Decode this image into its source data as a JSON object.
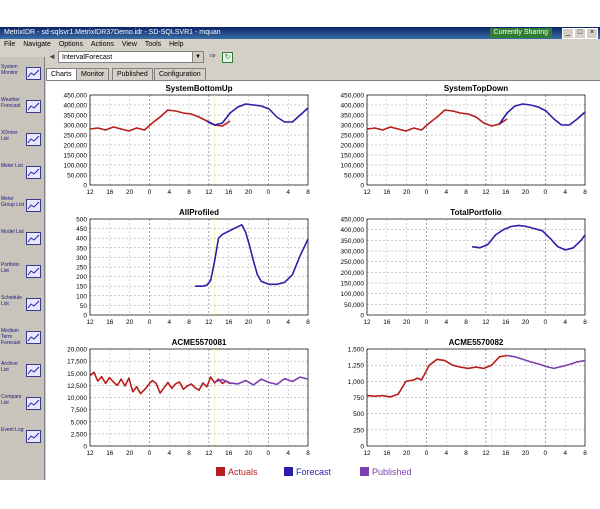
{
  "window": {
    "title": "MetrixIDR - sd-sqlsvr1.MetrixIDR37Demo.idr - SD-SQLSVR1 - mquan",
    "sharing_badge": "Currently Sharing",
    "min_glyph": "_",
    "max_glyph": "□",
    "close_glyph": "×"
  },
  "menu": [
    "File",
    "Navigate",
    "Options",
    "Actions",
    "View",
    "Tools",
    "Help"
  ],
  "nav": {
    "back_glyph": "◄",
    "forward_glyph": "►",
    "combo_value": "IntervalForecast",
    "combo_arrow": "▼",
    "go_glyph": "⇒",
    "refresh_glyph": "↻"
  },
  "sidebar": [
    {
      "label": "System Monitor",
      "icon": "system-monitor-icon"
    },
    {
      "label": "Weather Forecast",
      "icon": "weather-icon"
    },
    {
      "label": "XDriver List",
      "icon": "chart-icon"
    },
    {
      "label": "Meter List",
      "icon": "meter-icon"
    },
    {
      "label": "Meter Group List",
      "icon": "meter-group-icon"
    },
    {
      "label": "Model List",
      "icon": "model-icon"
    },
    {
      "label": "Portfolio List",
      "icon": "folder-icon"
    },
    {
      "label": "Schedule List",
      "icon": "schedule-icon"
    },
    {
      "label": "Medium Term Forecast",
      "icon": "forecast-icon"
    },
    {
      "label": "Archive List",
      "icon": "archive-icon"
    },
    {
      "label": "Compare List",
      "icon": "compare-icon"
    },
    {
      "label": "Event Log",
      "icon": "info-icon"
    }
  ],
  "tabs": [
    "Charts",
    "Monitor",
    "Published",
    "Configuration"
  ],
  "colors": {
    "actuals": "#b81c1c",
    "forecast": "#2a1fa8",
    "published": "#7b3fb0"
  },
  "legend": [
    {
      "key": "actuals",
      "label": "Actuals"
    },
    {
      "key": "forecast",
      "label": "Forecast"
    },
    {
      "key": "published",
      "label": "Published"
    }
  ],
  "chart_data": [
    {
      "type": "line",
      "title": "SystemBottomUp",
      "xticks": [
        "12",
        "16",
        "20",
        "0",
        "4",
        "8",
        "12",
        "16",
        "20",
        "0",
        "4",
        "8"
      ],
      "ylim": [
        0,
        450000
      ],
      "yticks": [
        "0",
        "50,000",
        "100,000",
        "150,000",
        "200,000",
        "250,000",
        "300,000",
        "350,000",
        "400,000",
        "450,000"
      ],
      "series": [
        {
          "name": "Actuals",
          "key": "actuals",
          "x": [
            0,
            2,
            4,
            6,
            8,
            10,
            12,
            14,
            16,
            18,
            20,
            22,
            24,
            26,
            28,
            30,
            32,
            34,
            36
          ],
          "y": [
            280000,
            285000,
            275000,
            290000,
            280000,
            270000,
            285000,
            275000,
            310000,
            340000,
            375000,
            370000,
            360000,
            355000,
            340000,
            320000,
            300000,
            295000,
            320000
          ]
        },
        {
          "name": "Forecast",
          "key": "forecast",
          "x": [
            30,
            32,
            34,
            36,
            38,
            40,
            42,
            44,
            46,
            48,
            50,
            52,
            54,
            56
          ],
          "y": [
            320000,
            300000,
            310000,
            360000,
            390000,
            405000,
            400000,
            395000,
            380000,
            340000,
            315000,
            315000,
            350000,
            385000
          ]
        }
      ]
    },
    {
      "type": "line",
      "title": "SystemTopDown",
      "xticks": [
        "12",
        "16",
        "20",
        "0",
        "4",
        "8",
        "12",
        "16",
        "20",
        "0",
        "4",
        "8"
      ],
      "ylim": [
        0,
        450000
      ],
      "yticks": [
        "0",
        "50,000",
        "100,000",
        "150,000",
        "200,000",
        "250,000",
        "300,000",
        "350,000",
        "400,000",
        "450,000"
      ],
      "series": [
        {
          "name": "Actuals",
          "key": "actuals",
          "x": [
            0,
            2,
            4,
            6,
            8,
            10,
            12,
            14,
            16,
            18,
            20,
            22,
            24,
            26,
            28,
            30,
            32,
            34,
            36
          ],
          "y": [
            280000,
            285000,
            275000,
            290000,
            280000,
            270000,
            285000,
            275000,
            310000,
            340000,
            375000,
            370000,
            360000,
            355000,
            340000,
            310000,
            295000,
            305000,
            330000
          ]
        },
        {
          "name": "Forecast",
          "key": "forecast",
          "x": [
            34,
            36,
            38,
            40,
            42,
            44,
            46,
            48,
            50,
            52,
            54,
            56
          ],
          "y": [
            305000,
            360000,
            395000,
            405000,
            400000,
            390000,
            370000,
            330000,
            300000,
            300000,
            330000,
            365000
          ]
        }
      ]
    },
    {
      "type": "line",
      "title": "AllProfiled",
      "xticks": [
        "12",
        "16",
        "20",
        "0",
        "4",
        "8",
        "12",
        "16",
        "20",
        "0",
        "4",
        "8"
      ],
      "ylim": [
        0,
        500
      ],
      "yticks": [
        "0",
        "50",
        "100",
        "150",
        "200",
        "250",
        "300",
        "350",
        "400",
        "450",
        "500"
      ],
      "series": [
        {
          "name": "Forecast",
          "key": "forecast",
          "x": [
            27,
            29,
            30,
            31,
            32,
            33,
            34,
            35,
            36,
            38,
            39,
            40,
            41,
            42,
            43,
            44,
            46,
            48,
            50,
            52,
            54,
            56
          ],
          "y": [
            150,
            150,
            155,
            180,
            280,
            400,
            420,
            430,
            440,
            460,
            470,
            430,
            360,
            280,
            210,
            175,
            160,
            160,
            170,
            210,
            310,
            395
          ]
        }
      ]
    },
    {
      "type": "line",
      "title": "TotalPortfolio",
      "xticks": [
        "12",
        "16",
        "20",
        "0",
        "4",
        "8",
        "12",
        "16",
        "20",
        "0",
        "4",
        "8"
      ],
      "ylim": [
        0,
        450000
      ],
      "yticks": [
        "0",
        "50,000",
        "100,000",
        "150,000",
        "200,000",
        "250,000",
        "300,000",
        "350,000",
        "400,000",
        "450,000"
      ],
      "series": [
        {
          "name": "Forecast",
          "key": "forecast",
          "x": [
            27,
            29,
            31,
            33,
            35,
            37,
            39,
            41,
            43,
            45,
            47,
            49,
            51,
            53,
            55,
            56
          ],
          "y": [
            320000,
            315000,
            330000,
            375000,
            400000,
            415000,
            420000,
            415000,
            405000,
            395000,
            360000,
            320000,
            305000,
            315000,
            350000,
            375000
          ]
        }
      ]
    },
    {
      "type": "line",
      "title": "ACME5570081",
      "xticks": [
        "12",
        "16",
        "20",
        "0",
        "4",
        "8",
        "12",
        "16",
        "20",
        "0",
        "4",
        "8"
      ],
      "ylim": [
        0,
        20000
      ],
      "yticks": [
        "0",
        "2,500",
        "5,000",
        "7,500",
        "10,000",
        "12,500",
        "15,000",
        "17,500",
        "20,000"
      ],
      "series": [
        {
          "name": "Actuals",
          "key": "actuals",
          "x": [
            0,
            1,
            2,
            3,
            4,
            5,
            6,
            7,
            8,
            9,
            10,
            11,
            12,
            13,
            14,
            15,
            16,
            17,
            18,
            19,
            20,
            21,
            22,
            23,
            24,
            25,
            26,
            27,
            28,
            29,
            30,
            31,
            32,
            33,
            34,
            35,
            36
          ],
          "y": [
            14500,
            15200,
            13400,
            14300,
            12900,
            14100,
            13200,
            12500,
            13800,
            12400,
            14000,
            11200,
            12200,
            10800,
            11600,
            12600,
            13500,
            12900,
            10900,
            12000,
            13100,
            11900,
            12800,
            13200,
            11700,
            12400,
            12800,
            12000,
            11500,
            13000,
            12200,
            14200,
            13000,
            13800,
            12900,
            13400,
            12800
          ]
        },
        {
          "name": "Published",
          "key": "published",
          "x": [
            32,
            34,
            36,
            38,
            40,
            42,
            44,
            46,
            48,
            50,
            52,
            54,
            56
          ],
          "y": [
            13200,
            13700,
            13000,
            12800,
            13500,
            12600,
            13800,
            13100,
            12700,
            13900,
            13300,
            14200,
            13800
          ]
        }
      ]
    },
    {
      "type": "line",
      "title": "ACME5570082",
      "xticks": [
        "12",
        "16",
        "20",
        "0",
        "4",
        "8",
        "12",
        "16",
        "20",
        "0",
        "4",
        "8"
      ],
      "ylim": [
        0,
        1500
      ],
      "yticks": [
        "0",
        "250",
        "500",
        "750",
        "1,000",
        "1,250",
        "1,500"
      ],
      "series": [
        {
          "name": "Actuals",
          "key": "actuals",
          "x": [
            0,
            2,
            4,
            6,
            8,
            10,
            12,
            13,
            14,
            16,
            18,
            20,
            22,
            24,
            26,
            28,
            30,
            32,
            34,
            36
          ],
          "y": [
            780,
            770,
            780,
            760,
            800,
            1000,
            1020,
            1050,
            1020,
            1250,
            1340,
            1320,
            1250,
            1220,
            1200,
            1220,
            1200,
            1250,
            1380,
            1400
          ]
        },
        {
          "name": "Published",
          "key": "published",
          "x": [
            36,
            38,
            40,
            42,
            44,
            46,
            48,
            50,
            52,
            54,
            56
          ],
          "y": [
            1400,
            1380,
            1340,
            1300,
            1270,
            1230,
            1200,
            1230,
            1260,
            1300,
            1320
          ]
        }
      ]
    }
  ]
}
